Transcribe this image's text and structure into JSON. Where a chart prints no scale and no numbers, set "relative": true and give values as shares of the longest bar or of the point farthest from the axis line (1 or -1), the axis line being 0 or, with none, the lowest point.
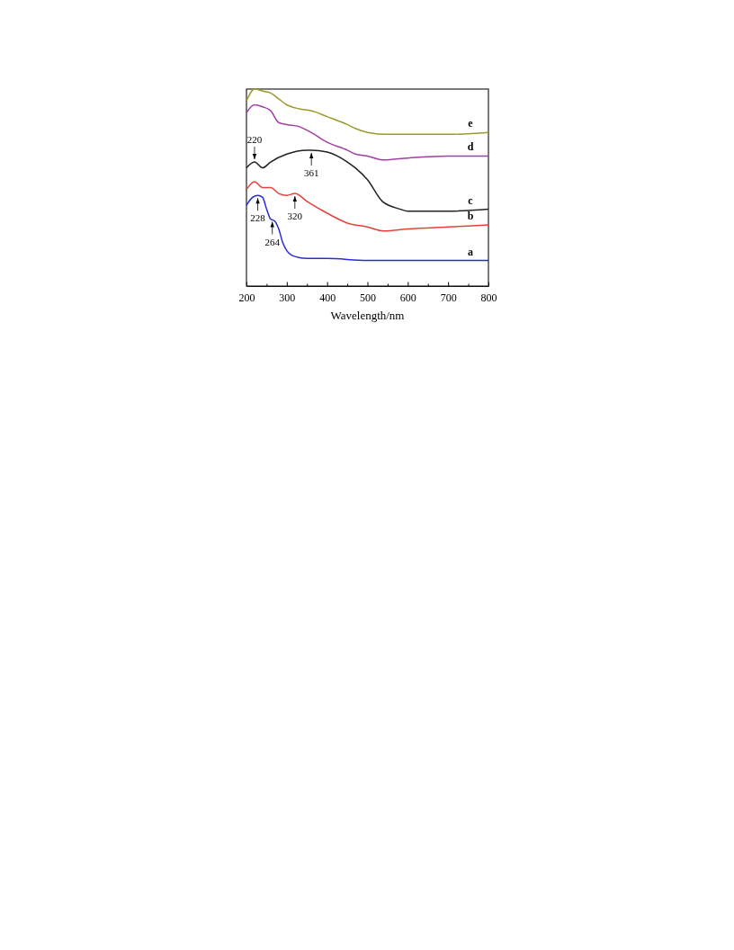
{
  "chart_data": {
    "type": "line",
    "relative": true,
    "xlabel": "Wavelength/nm",
    "xlim": [
      200,
      800
    ],
    "xticks": [
      200,
      {
        "value": 250,
        "label": null
      },
      300,
      {
        "value": 350,
        "label": null
      },
      400,
      {
        "value": 450,
        "label": null
      },
      500,
      {
        "value": 550,
        "label": null
      },
      600,
      {
        "value": 650,
        "label": null
      },
      700,
      {
        "value": 750,
        "label": null
      },
      800
    ],
    "tick_labels": "x",
    "grid": false,
    "marker": "none",
    "line_style": "solid",
    "series": [
      {
        "name": "a",
        "color": "#2b2bd8",
        "x": [
          200,
          215,
          228,
          240,
          250,
          260,
          270,
          280,
          290,
          300,
          320,
          350,
          400,
          500,
          600,
          700,
          800
        ],
        "values": [
          0.41,
          0.45,
          0.46,
          0.45,
          0.39,
          0.34,
          0.33,
          0.29,
          0.22,
          0.18,
          0.15,
          0.14,
          0.14,
          0.13,
          0.13,
          0.13,
          0.13
        ]
      },
      {
        "name": "b",
        "color": "#e8413a",
        "x": [
          200,
          220,
          240,
          260,
          280,
          300,
          320,
          350,
          400,
          450,
          500,
          540,
          600,
          700,
          800
        ],
        "values": [
          0.49,
          0.53,
          0.5,
          0.5,
          0.47,
          0.46,
          0.47,
          0.43,
          0.37,
          0.32,
          0.3,
          0.28,
          0.29,
          0.3,
          0.31
        ]
      },
      {
        "name": "c",
        "color": "#222222",
        "x": [
          200,
          220,
          240,
          260,
          300,
          350,
          361,
          400,
          450,
          470,
          500,
          537,
          582,
          600,
          700,
          800
        ],
        "values": [
          0.6,
          0.63,
          0.6,
          0.63,
          0.67,
          0.69,
          0.69,
          0.68,
          0.63,
          0.6,
          0.54,
          0.43,
          0.39,
          0.38,
          0.38,
          0.39
        ]
      },
      {
        "name": "d",
        "color": "#a040a0",
        "x": [
          200,
          220,
          240,
          260,
          280,
          300,
          330,
          360,
          400,
          450,
          470,
          500,
          540,
          600,
          700,
          800
        ],
        "values": [
          0.88,
          0.92,
          0.91,
          0.89,
          0.83,
          0.82,
          0.81,
          0.78,
          0.73,
          0.69,
          0.67,
          0.66,
          0.64,
          0.65,
          0.66,
          0.66
        ]
      },
      {
        "name": "e",
        "color": "#9a9a2e",
        "x": [
          200,
          220,
          240,
          260,
          280,
          300,
          330,
          360,
          400,
          450,
          470,
          500,
          550,
          600,
          700,
          800
        ],
        "values": [
          0.94,
          1,
          0.99,
          0.98,
          0.95,
          0.92,
          0.9,
          0.89,
          0.86,
          0.82,
          0.8,
          0.78,
          0.77,
          0.77,
          0.77,
          0.78
        ]
      }
    ],
    "annotations": [
      {
        "text": "220",
        "x": 220,
        "y": 0.63
      },
      {
        "text": "361",
        "x": 361,
        "y": 0.69
      },
      {
        "text": "320",
        "x": 320,
        "y": 0.47
      },
      {
        "text": "228",
        "x": 228,
        "y": 0.46
      },
      {
        "text": "264",
        "x": 264,
        "y": 0.34
      }
    ]
  }
}
